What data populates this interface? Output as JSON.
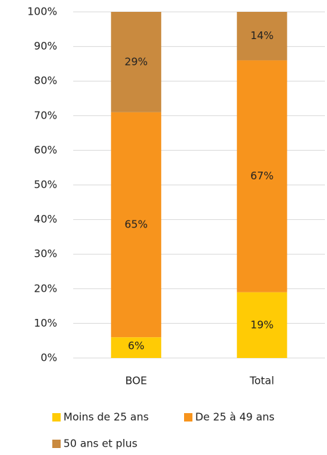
{
  "chart_data": {
    "type": "stacked_bar",
    "categories": [
      "BOE",
      "Total"
    ],
    "series": [
      {
        "name": "Moins de 25 ans",
        "color": "#ffcb05",
        "values": [
          6,
          19
        ],
        "value_labels": [
          "6%",
          "19%"
        ]
      },
      {
        "name": "De 25 à 49 ans",
        "color": "#f7941d",
        "values": [
          65,
          67
        ],
        "value_labels": [
          "65%",
          "67%"
        ]
      },
      {
        "name": "50 ans et plus",
        "color": "#c98a3f",
        "values": [
          29,
          14
        ],
        "value_labels": [
          "29%",
          "14%"
        ]
      }
    ],
    "ylim": [
      0,
      100
    ],
    "yticks": [
      {
        "value": 0,
        "label": "0%"
      },
      {
        "value": 10,
        "label": "10%"
      },
      {
        "value": 20,
        "label": "20%"
      },
      {
        "value": 30,
        "label": "30%"
      },
      {
        "value": 40,
        "label": "40%"
      },
      {
        "value": 50,
        "label": "50%"
      },
      {
        "value": 60,
        "label": "60%"
      },
      {
        "value": 70,
        "label": "70%"
      },
      {
        "value": 80,
        "label": "80%"
      },
      {
        "value": 90,
        "label": "90%"
      },
      {
        "value": 100,
        "label": "100%"
      }
    ],
    "grid": true
  }
}
